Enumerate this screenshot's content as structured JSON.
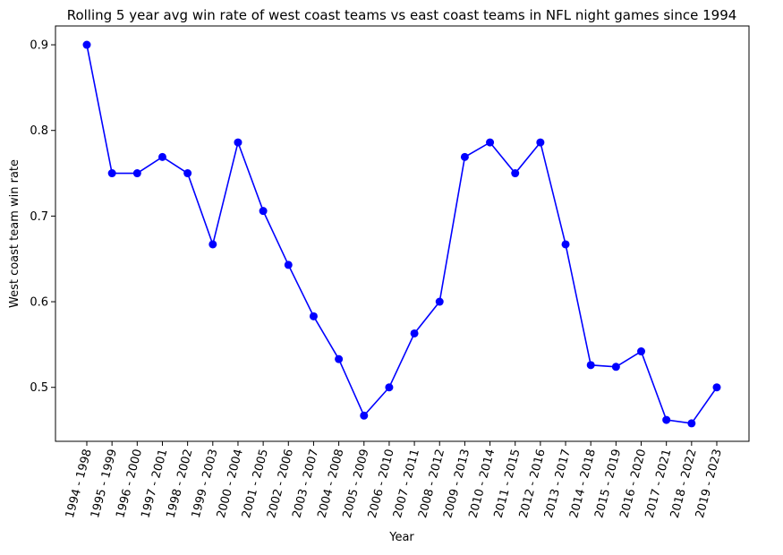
{
  "chart_data": {
    "type": "line",
    "title": "Rolling 5 year avg win rate of west coast teams vs east coast teams in NFL night games since 1994",
    "xlabel": "Year",
    "ylabel": "West coast team win rate",
    "categories": [
      "1994 - 1998",
      "1995 - 1999",
      "1996 - 2000",
      "1997 - 2001",
      "1998 - 2002",
      "1999 - 2003",
      "2000 - 2004",
      "2001 - 2005",
      "2002 - 2006",
      "2003 - 2007",
      "2004 - 2008",
      "2005 - 2009",
      "2006 - 2010",
      "2007 - 2011",
      "2008 - 2012",
      "2009 - 2013",
      "2010 - 2014",
      "2011 - 2015",
      "2012 - 2016",
      "2013 - 2017",
      "2014 - 2018",
      "2015 - 2019",
      "2016 - 2020",
      "2017 - 2021",
      "2018 - 2022",
      "2019 - 2023"
    ],
    "values": [
      0.9,
      0.75,
      0.75,
      0.769,
      0.75,
      0.667,
      0.786,
      0.706,
      0.643,
      0.583,
      0.533,
      0.467,
      0.5,
      0.563,
      0.6,
      0.769,
      0.786,
      0.75,
      0.786,
      0.667,
      0.526,
      0.524,
      0.542,
      0.462,
      0.458,
      0.5
    ],
    "ylim": [
      0.437,
      0.922
    ],
    "yticks": [
      "0.5",
      "0.6",
      "0.7",
      "0.8",
      "0.9"
    ],
    "grid": false,
    "color": "#0000ff"
  }
}
